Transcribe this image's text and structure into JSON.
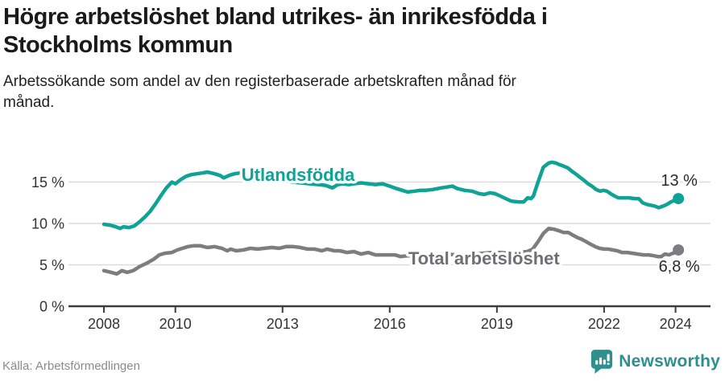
{
  "header": {
    "title_lines": [
      "Högre arbetslöshet bland utrikes- än inrikesfödda i",
      "Stockholms kommun"
    ],
    "subtitle_lines": [
      "Arbetssökande som andel av den registerbaserade arbetskraften månad för",
      "månad."
    ]
  },
  "chart_data": {
    "type": "line",
    "title": "Högre arbetslöshet bland utrikes- än inrikesfödda i Stockholms kommun",
    "subtitle": "Arbetssökande som andel av den registerbaserade arbetskraften månad för månad.",
    "xlabel": "",
    "ylabel": "%",
    "grid": "horizontal",
    "legend_position": "inline-labels",
    "xlim": [
      2007.0,
      2025.0
    ],
    "ylim": [
      0,
      19
    ],
    "x_ticks": [
      2008,
      2010,
      2013,
      2016,
      2019,
      2022,
      2024
    ],
    "x_tick_labels": [
      "2008",
      "2010",
      "2013",
      "2016",
      "2019",
      "2022",
      "2024"
    ],
    "y_ticks": [
      0,
      5,
      10,
      15
    ],
    "y_tick_labels": [
      "0 %",
      "5 %",
      "10 %",
      "15 %"
    ],
    "series": [
      {
        "name": "Utlandsfödda",
        "color": "#0fa396",
        "label_color": "#0fa396",
        "end_label": "13 %",
        "end_label_side": "above",
        "label_anchor": {
          "year": 2011.85,
          "value": 15.15
        },
        "points": [
          [
            2008.0,
            9.9
          ],
          [
            2008.17,
            9.8
          ],
          [
            2008.33,
            9.6
          ],
          [
            2008.45,
            9.4
          ],
          [
            2008.55,
            9.6
          ],
          [
            2008.7,
            9.5
          ],
          [
            2008.85,
            9.7
          ],
          [
            2009.0,
            10.2
          ],
          [
            2009.15,
            10.8
          ],
          [
            2009.3,
            11.5
          ],
          [
            2009.45,
            12.4
          ],
          [
            2009.6,
            13.4
          ],
          [
            2009.75,
            14.3
          ],
          [
            2009.9,
            15.0
          ],
          [
            2010.0,
            14.8
          ],
          [
            2010.15,
            15.3
          ],
          [
            2010.3,
            15.7
          ],
          [
            2010.45,
            15.9
          ],
          [
            2010.6,
            16.0
          ],
          [
            2010.75,
            16.1
          ],
          [
            2010.9,
            16.2
          ],
          [
            2011.1,
            16.0
          ],
          [
            2011.25,
            15.8
          ],
          [
            2011.35,
            15.5
          ],
          [
            2011.5,
            15.8
          ],
          [
            2011.65,
            16.0
          ],
          [
            2011.8,
            16.1
          ],
          [
            2012.0,
            15.9
          ],
          [
            2012.25,
            15.8
          ],
          [
            2012.5,
            15.6
          ],
          [
            2012.75,
            15.4
          ],
          [
            2013.0,
            15.2
          ],
          [
            2013.25,
            15.0
          ],
          [
            2013.5,
            14.9
          ],
          [
            2013.75,
            14.8
          ],
          [
            2014.0,
            14.7
          ],
          [
            2014.2,
            14.6
          ],
          [
            2014.4,
            14.3
          ],
          [
            2014.55,
            14.7
          ],
          [
            2014.7,
            14.8
          ],
          [
            2014.85,
            14.7
          ],
          [
            2015.0,
            14.8
          ],
          [
            2015.2,
            14.9
          ],
          [
            2015.4,
            14.8
          ],
          [
            2015.6,
            14.7
          ],
          [
            2015.8,
            14.8
          ],
          [
            2016.0,
            14.5
          ],
          [
            2016.2,
            14.2
          ],
          [
            2016.35,
            14.0
          ],
          [
            2016.5,
            13.8
          ],
          [
            2016.7,
            13.9
          ],
          [
            2016.85,
            14.0
          ],
          [
            2017.0,
            14.0
          ],
          [
            2017.2,
            14.1
          ],
          [
            2017.45,
            14.3
          ],
          [
            2017.6,
            14.4
          ],
          [
            2017.75,
            14.5
          ],
          [
            2017.9,
            14.2
          ],
          [
            2018.1,
            14.0
          ],
          [
            2018.3,
            13.9
          ],
          [
            2018.5,
            13.6
          ],
          [
            2018.65,
            13.5
          ],
          [
            2018.8,
            13.7
          ],
          [
            2018.95,
            13.6
          ],
          [
            2019.1,
            13.3
          ],
          [
            2019.25,
            13.0
          ],
          [
            2019.4,
            12.7
          ],
          [
            2019.6,
            12.6
          ],
          [
            2019.75,
            12.6
          ],
          [
            2019.86,
            13.1
          ],
          [
            2019.95,
            13.0
          ],
          [
            2020.02,
            13.3
          ],
          [
            2020.15,
            15.0
          ],
          [
            2020.3,
            16.8
          ],
          [
            2020.45,
            17.3
          ],
          [
            2020.54,
            17.4
          ],
          [
            2020.65,
            17.3
          ],
          [
            2020.76,
            17.1
          ],
          [
            2020.88,
            16.9
          ],
          [
            2020.99,
            16.7
          ],
          [
            2021.1,
            16.3
          ],
          [
            2021.2,
            16.0
          ],
          [
            2021.32,
            15.6
          ],
          [
            2021.44,
            15.2
          ],
          [
            2021.55,
            14.8
          ],
          [
            2021.66,
            14.5
          ],
          [
            2021.78,
            14.1
          ],
          [
            2021.89,
            13.9
          ],
          [
            2021.98,
            14.0
          ],
          [
            2022.08,
            13.9
          ],
          [
            2022.18,
            13.6
          ],
          [
            2022.3,
            13.3
          ],
          [
            2022.4,
            13.1
          ],
          [
            2022.55,
            13.1
          ],
          [
            2022.7,
            13.1
          ],
          [
            2022.86,
            13.0
          ],
          [
            2022.97,
            13.0
          ],
          [
            2023.08,
            12.5
          ],
          [
            2023.2,
            12.3
          ],
          [
            2023.3,
            12.2
          ],
          [
            2023.42,
            12.1
          ],
          [
            2023.53,
            11.9
          ],
          [
            2023.65,
            12.1
          ],
          [
            2023.76,
            12.3
          ],
          [
            2023.87,
            12.6
          ],
          [
            2023.98,
            12.8
          ],
          [
            2024.08,
            13.0
          ]
        ]
      },
      {
        "name": "Total arbetslöshet",
        "color": "#7c7c81",
        "label_color": "#6f6f75",
        "end_label": "6,8 %",
        "end_label_side": "below",
        "label_anchor": {
          "year": 2016.52,
          "value": 5.05
        },
        "points": [
          [
            2008.0,
            4.3
          ],
          [
            2008.2,
            4.1
          ],
          [
            2008.36,
            3.9
          ],
          [
            2008.5,
            4.3
          ],
          [
            2008.65,
            4.1
          ],
          [
            2008.82,
            4.3
          ],
          [
            2009.0,
            4.8
          ],
          [
            2009.2,
            5.2
          ],
          [
            2009.4,
            5.7
          ],
          [
            2009.55,
            6.2
          ],
          [
            2009.7,
            6.4
          ],
          [
            2009.9,
            6.5
          ],
          [
            2010.05,
            6.8
          ],
          [
            2010.2,
            7.0
          ],
          [
            2010.35,
            7.2
          ],
          [
            2010.5,
            7.3
          ],
          [
            2010.7,
            7.3
          ],
          [
            2010.9,
            7.1
          ],
          [
            2011.1,
            7.2
          ],
          [
            2011.3,
            7.0
          ],
          [
            2011.45,
            6.7
          ],
          [
            2011.55,
            6.9
          ],
          [
            2011.7,
            6.7
          ],
          [
            2011.9,
            6.8
          ],
          [
            2012.1,
            7.0
          ],
          [
            2012.3,
            6.9
          ],
          [
            2012.5,
            7.0
          ],
          [
            2012.7,
            7.1
          ],
          [
            2012.9,
            7.0
          ],
          [
            2013.1,
            7.2
          ],
          [
            2013.3,
            7.2
          ],
          [
            2013.5,
            7.1
          ],
          [
            2013.7,
            6.9
          ],
          [
            2013.9,
            6.9
          ],
          [
            2014.1,
            6.7
          ],
          [
            2014.25,
            6.9
          ],
          [
            2014.45,
            6.7
          ],
          [
            2014.6,
            6.7
          ],
          [
            2014.8,
            6.5
          ],
          [
            2015.0,
            6.6
          ],
          [
            2015.2,
            6.3
          ],
          [
            2015.4,
            6.5
          ],
          [
            2015.6,
            6.2
          ],
          [
            2015.8,
            6.2
          ],
          [
            2016.0,
            6.2
          ],
          [
            2016.15,
            6.2
          ],
          [
            2016.3,
            6.0
          ],
          [
            2016.5,
            6.1
          ],
          [
            2016.7,
            6.0
          ],
          [
            2016.9,
            6.1
          ],
          [
            2017.1,
            6.2
          ],
          [
            2017.35,
            6.3
          ],
          [
            2017.6,
            6.3
          ],
          [
            2017.85,
            6.2
          ],
          [
            2018.1,
            6.2
          ],
          [
            2018.35,
            6.3
          ],
          [
            2018.6,
            6.4
          ],
          [
            2018.85,
            6.5
          ],
          [
            2019.1,
            6.5
          ],
          [
            2019.35,
            6.4
          ],
          [
            2019.6,
            6.5
          ],
          [
            2019.85,
            6.6
          ],
          [
            2020.0,
            6.9
          ],
          [
            2020.15,
            7.8
          ],
          [
            2020.3,
            8.8
          ],
          [
            2020.45,
            9.4
          ],
          [
            2020.6,
            9.3
          ],
          [
            2020.75,
            9.1
          ],
          [
            2020.87,
            8.9
          ],
          [
            2021.0,
            8.9
          ],
          [
            2021.12,
            8.6
          ],
          [
            2021.25,
            8.3
          ],
          [
            2021.37,
            8.1
          ],
          [
            2021.5,
            7.8
          ],
          [
            2021.62,
            7.5
          ],
          [
            2021.75,
            7.2
          ],
          [
            2021.87,
            7.0
          ],
          [
            2022.0,
            6.9
          ],
          [
            2022.12,
            6.9
          ],
          [
            2022.25,
            6.8
          ],
          [
            2022.37,
            6.7
          ],
          [
            2022.5,
            6.5
          ],
          [
            2022.65,
            6.5
          ],
          [
            2022.8,
            6.4
          ],
          [
            2022.95,
            6.3
          ],
          [
            2023.1,
            6.2
          ],
          [
            2023.25,
            6.2
          ],
          [
            2023.4,
            6.1
          ],
          [
            2023.5,
            6.0
          ],
          [
            2023.6,
            6.0
          ],
          [
            2023.7,
            6.3
          ],
          [
            2023.82,
            6.2
          ],
          [
            2023.92,
            6.4
          ],
          [
            2024.0,
            6.5
          ],
          [
            2024.08,
            6.8
          ]
        ]
      }
    ]
  },
  "footer": {
    "source": "Källa: Arbetsförmedlingen",
    "brand": "Newsworthy",
    "brand_color": "#2e8f8f"
  },
  "colors": {
    "accent_teal": "#0fa396",
    "line_gray": "#7c7c81",
    "gridline": "#dcdcdc",
    "axis": "#3c3c3c",
    "tick_label": "#333333",
    "end_label": "#2a2a2a"
  }
}
